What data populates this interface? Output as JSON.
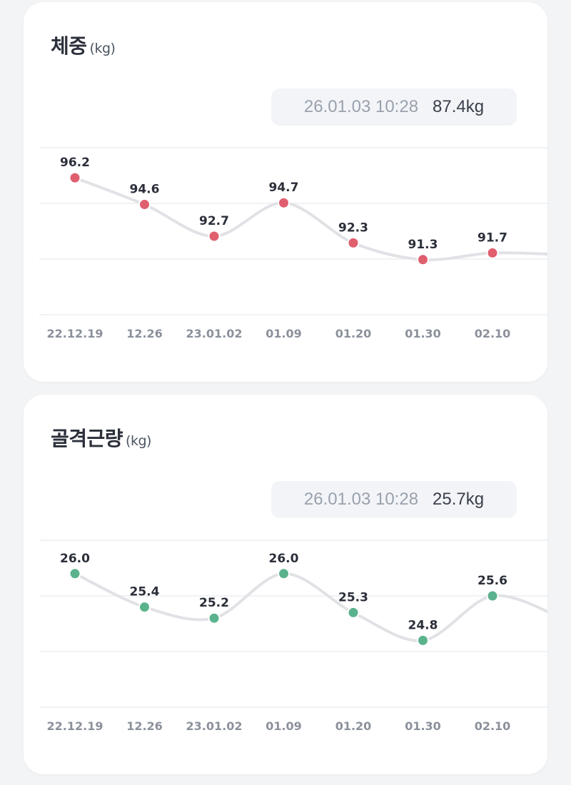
{
  "cards": [
    {
      "title": "체중",
      "unit": "(kg)",
      "latest_time": "26.01.03 10:28",
      "latest_value": "87.4kg"
    },
    {
      "title": "골격근량",
      "unit": "(kg)",
      "latest_time": "26.01.03 10:28",
      "latest_value": "25.7kg"
    }
  ],
  "chart_data": [
    {
      "type": "line",
      "categories": [
        "22.12.19",
        "12.26",
        "23.01.02",
        "01.09",
        "01.20",
        "01.30",
        "02.10"
      ],
      "series": [
        {
          "values": [
            96.2,
            94.6,
            92.7,
            94.7,
            92.3,
            91.3,
            91.7
          ],
          "labels": [
            "96.2",
            "94.6",
            "92.7",
            "94.7",
            "92.3",
            "91.3",
            "91.7"
          ],
          "trailing_value": 91.6
        }
      ],
      "ylim": [
        88,
        98
      ],
      "grid": true,
      "marker_color": "#e05f6f",
      "line_color": "#e1e2e6"
    },
    {
      "type": "line",
      "categories": [
        "22.12.19",
        "12.26",
        "23.01.02",
        "01.09",
        "01.20",
        "01.30",
        "02.10"
      ],
      "series": [
        {
          "values": [
            26.0,
            25.4,
            25.2,
            26.0,
            25.3,
            24.8,
            25.6
          ],
          "labels": [
            "26.0",
            "25.4",
            "25.2",
            "26.0",
            "25.3",
            "24.8",
            "25.6"
          ],
          "trailing_value": 25.2
        }
      ],
      "ylim": [
        23.6,
        26.6
      ],
      "grid": true,
      "marker_color": "#5bb38e",
      "line_color": "#e1e2e6"
    }
  ]
}
